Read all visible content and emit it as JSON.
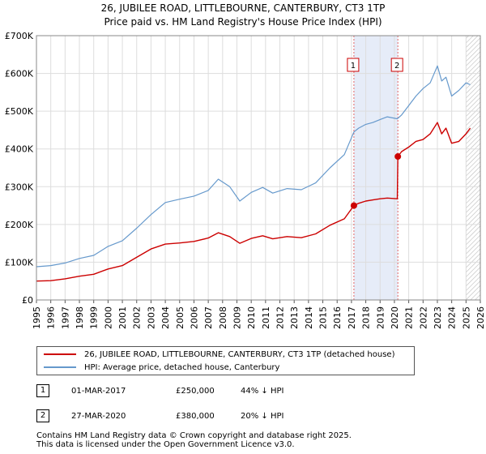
{
  "chart_data": {
    "type": "line",
    "title": "26, JUBILEE ROAD, LITTLEBOURNE, CANTERBURY, CT3 1TP",
    "subtitle": "Price paid vs. HM Land Registry's House Price Index (HPI)",
    "xlim": [
      1995,
      2026
    ],
    "ylim": [
      0,
      700000
    ],
    "x_ticks": [
      "1995",
      "1996",
      "1997",
      "1998",
      "1999",
      "2000",
      "2001",
      "2002",
      "2003",
      "2004",
      "2005",
      "2006",
      "2007",
      "2008",
      "2009",
      "2010",
      "2011",
      "2012",
      "2013",
      "2014",
      "2015",
      "2016",
      "2017",
      "2018",
      "2019",
      "2020",
      "2021",
      "2022",
      "2023",
      "2024",
      "2025",
      "2026"
    ],
    "y_ticks": [
      {
        "value": 0,
        "label": "£0"
      },
      {
        "value": 100000,
        "label": "£100K"
      },
      {
        "value": 200000,
        "label": "£200K"
      },
      {
        "value": 300000,
        "label": "£300K"
      },
      {
        "value": 400000,
        "label": "£400K"
      },
      {
        "value": 500000,
        "label": "£500K"
      },
      {
        "value": 600000,
        "label": "£600K"
      },
      {
        "value": 700000,
        "label": "£700K"
      }
    ],
    "series": [
      {
        "name": "26, JUBILEE ROAD, LITTLEBOURNE, CANTERBURY, CT3 1TP (detached house)",
        "color": "#cc0000",
        "x": [
          1995.0,
          1996.0,
          1997.0,
          1998.0,
          1999.0,
          2000.0,
          2001.0,
          2002.0,
          2003.0,
          2004.0,
          2005.0,
          2006.0,
          2007.0,
          2007.7,
          2008.5,
          2009.2,
          2010.0,
          2010.8,
          2011.5,
          2012.5,
          2013.5,
          2014.5,
          2015.5,
          2016.5,
          2017.17,
          2017.5,
          2018.0,
          2018.5,
          2019.0,
          2019.5,
          2020.2,
          2020.24,
          2020.5,
          2021.0,
          2021.5,
          2022.0,
          2022.5,
          2023.0,
          2023.3,
          2023.6,
          2024.0,
          2024.5,
          2025.0,
          2025.3
        ],
        "y": [
          50000,
          51000,
          56000,
          63000,
          68000,
          82000,
          91000,
          113000,
          135000,
          148000,
          151000,
          155000,
          164000,
          178000,
          168000,
          150000,
          163000,
          170000,
          162000,
          168000,
          165000,
          175000,
          198000,
          215000,
          250000,
          256000,
          262000,
          265000,
          268000,
          270000,
          268000,
          380000,
          393000,
          405000,
          420000,
          425000,
          440000,
          470000,
          440000,
          455000,
          415000,
          420000,
          440000,
          455000
        ]
      },
      {
        "name": "HPI: Average price, detached house, Canterbury",
        "color": "#6699cc",
        "x": [
          1995.0,
          1996.0,
          1997.0,
          1998.0,
          1999.0,
          2000.0,
          2001.0,
          2002.0,
          2003.0,
          2004.0,
          2005.0,
          2006.0,
          2007.0,
          2007.7,
          2008.5,
          2009.2,
          2010.0,
          2010.8,
          2011.5,
          2012.5,
          2013.5,
          2014.5,
          2015.5,
          2016.5,
          2017.17,
          2017.5,
          2018.0,
          2018.5,
          2019.0,
          2019.5,
          2020.2,
          2020.5,
          2021.0,
          2021.5,
          2022.0,
          2022.5,
          2023.0,
          2023.3,
          2023.6,
          2024.0,
          2024.5,
          2025.0,
          2025.3
        ],
        "y": [
          88000,
          91000,
          98000,
          110000,
          118000,
          142000,
          157000,
          190000,
          226000,
          258000,
          267000,
          275000,
          290000,
          320000,
          300000,
          262000,
          285000,
          298000,
          283000,
          295000,
          292000,
          310000,
          350000,
          385000,
          445000,
          455000,
          465000,
          470000,
          478000,
          485000,
          480000,
          490000,
          515000,
          540000,
          560000,
          575000,
          620000,
          580000,
          590000,
          540000,
          555000,
          575000,
          570000
        ]
      }
    ],
    "markers": [
      {
        "label": "1",
        "x": 2017.17,
        "y": 250000
      },
      {
        "label": "2",
        "x": 2020.24,
        "y": 380000
      }
    ],
    "highlight_span": [
      2017.17,
      2020.24
    ],
    "hatch_from": 2025.0
  },
  "legend": {
    "property_label": "26, JUBILEE ROAD, LITTLEBOURNE, CANTERBURY, CT3 1TP (detached house)",
    "hpi_label": "HPI: Average price, detached house, Canterbury",
    "property_color": "#cc0000",
    "hpi_color": "#6699cc"
  },
  "sales": [
    {
      "num": "1",
      "date": "01-MAR-2017",
      "price": "£250,000",
      "hpi": "44% ↓ HPI"
    },
    {
      "num": "2",
      "date": "27-MAR-2020",
      "price": "£380,000",
      "hpi": "20% ↓ HPI"
    }
  ],
  "footer": {
    "line1": "Contains HM Land Registry data © Crown copyright and database right 2025.",
    "line2": "This data is licensed under the Open Government Licence v3.0."
  }
}
